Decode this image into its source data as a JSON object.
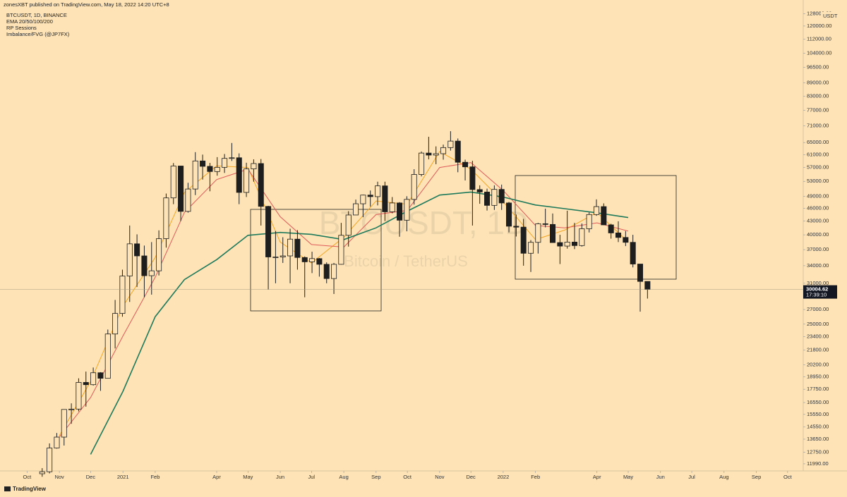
{
  "chart_data": {
    "type": "candlestick",
    "publisher": "zonesXBT published on TradingView.com, May 18, 2022 14:20 UTC+8",
    "title": "BTCUSDT, 1D, BINANCE",
    "indicators": [
      "EMA 20/50/100/200",
      "RP Sessions",
      "Imbalance/FVG (@JP7FX)"
    ],
    "watermark": "BTCUSDT, 1D",
    "watermark_subtitle": "Bitcoin / TetherUS",
    "currency": "USDT",
    "brand": "TradingView",
    "log_scale": true,
    "grid": false,
    "up_color": "#fde3b6",
    "down_color": "#1e1e1e",
    "edge_color": "#1e1e1e",
    "x": [
      "2020-10-12",
      "2020-10-19",
      "2020-10-26",
      "2020-11-02",
      "2020-11-09",
      "2020-11-16",
      "2020-11-23",
      "2020-11-30",
      "2020-12-07",
      "2020-12-14",
      "2020-12-21",
      "2020-12-28",
      "2021-01-04",
      "2021-01-11",
      "2021-01-18",
      "2021-01-25",
      "2021-02-01",
      "2021-02-08",
      "2021-02-15",
      "2021-02-22",
      "2021-03-01",
      "2021-03-08",
      "2021-03-15",
      "2021-03-22",
      "2021-03-29",
      "2021-04-05",
      "2021-04-12",
      "2021-04-19",
      "2021-04-26",
      "2021-05-03",
      "2021-05-10",
      "2021-05-17",
      "2021-05-24",
      "2021-05-31",
      "2021-06-07",
      "2021-06-14",
      "2021-06-21",
      "2021-06-28",
      "2021-07-05",
      "2021-07-12",
      "2021-07-19",
      "2021-07-26",
      "2021-08-02",
      "2021-08-09",
      "2021-08-16",
      "2021-08-23",
      "2021-08-30",
      "2021-09-06",
      "2021-09-13",
      "2021-09-20",
      "2021-09-27",
      "2021-10-04",
      "2021-10-11",
      "2021-10-18",
      "2021-10-25",
      "2021-11-01",
      "2021-11-08",
      "2021-11-15",
      "2021-11-22",
      "2021-11-29",
      "2021-12-06",
      "2021-12-13",
      "2021-12-20",
      "2021-12-27",
      "2022-01-03",
      "2022-01-10",
      "2022-01-17",
      "2022-01-24",
      "2022-01-31",
      "2022-02-07",
      "2022-02-14",
      "2022-02-21",
      "2022-02-28",
      "2022-03-07",
      "2022-03-14",
      "2022-03-21",
      "2022-03-28",
      "2022-04-04",
      "2022-04-11",
      "2022-04-18",
      "2022-04-25",
      "2022-05-02",
      "2022-05-09",
      "2022-05-16"
    ],
    "open": [
      11380,
      11500,
      13030,
      13800,
      15960,
      15990,
      18400,
      18180,
      19360,
      18800,
      23740,
      26450,
      32200,
      38150,
      35800,
      32260,
      33100,
      39200,
      48580,
      57450,
      45250,
      50900,
      59000,
      57350,
      55800,
      57050,
      59800,
      60000,
      50000,
      56580,
      58200,
      46450,
      35600,
      35600,
      35800,
      39100,
      35500,
      34700,
      35300,
      34250,
      31780,
      34250,
      39900,
      44400,
      47100,
      49300,
      48900,
      51750,
      45150,
      47300,
      43200,
      48200,
      54950,
      61500,
      60850,
      61300,
      63300,
      65500,
      58600,
      57200,
      50750,
      50100,
      46700,
      50800,
      47300,
      41850,
      41650,
      36300,
      38450,
      42400,
      42250,
      38400,
      37700,
      38500,
      37800,
      41300,
      44500,
      46400,
      42150,
      40400,
      39450,
      38450,
      34300,
      31300
    ],
    "high": [
      11720,
      13350,
      14100,
      15960,
      16480,
      18800,
      19480,
      19900,
      19420,
      24300,
      28400,
      33300,
      42000,
      40100,
      37800,
      38500,
      40950,
      49700,
      58350,
      57500,
      52600,
      61800,
      61000,
      58400,
      60200,
      61200,
      64850,
      61400,
      58450,
      59500,
      59600,
      46600,
      40800,
      39500,
      41300,
      41000,
      35700,
      36600,
      35400,
      34600,
      34500,
      42600,
      45300,
      48150,
      49400,
      50500,
      52900,
      52900,
      48800,
      47500,
      49000,
      56500,
      62000,
      67000,
      63700,
      64300,
      69000,
      66400,
      59400,
      59050,
      51900,
      51000,
      51900,
      52100,
      47550,
      44500,
      43500,
      38900,
      42600,
      45900,
      44750,
      40000,
      45400,
      42600,
      42450,
      45000,
      48200,
      47200,
      42400,
      42950,
      40800,
      40000,
      34300,
      31300
    ],
    "low": [
      11200,
      11400,
      12990,
      13200,
      14800,
      15800,
      16200,
      18100,
      17600,
      18800,
      22000,
      26000,
      28100,
      30400,
      28800,
      29200,
      32300,
      37400,
      47000,
      43000,
      44950,
      49300,
      53500,
      50300,
      54600,
      55400,
      59000,
      47000,
      48800,
      52900,
      42000,
      30000,
      31000,
      34500,
      31000,
      33300,
      28800,
      32700,
      32100,
      31000,
      29300,
      34200,
      37600,
      44400,
      43900,
      46400,
      46700,
      43000,
      44800,
      39600,
      40750,
      46900,
      54400,
      59500,
      58000,
      59400,
      62300,
      55600,
      53250,
      42000,
      47100,
      45450,
      45600,
      45600,
      40500,
      39650,
      34000,
      32900,
      36250,
      41600,
      39500,
      34300,
      37200,
      37100,
      37600,
      40500,
      44200,
      42100,
      39200,
      38500,
      37700,
      33700,
      26700,
      28600
    ],
    "close": [
      11500,
      13030,
      13800,
      15960,
      15990,
      18400,
      18180,
      19360,
      18800,
      23740,
      26450,
      32200,
      38150,
      35800,
      32260,
      33100,
      39200,
      48580,
      57450,
      45250,
      50900,
      59000,
      57350,
      55800,
      57050,
      59800,
      60000,
      50000,
      56580,
      58200,
      46450,
      35600,
      35600,
      35800,
      39100,
      35500,
      34700,
      35300,
      34250,
      31780,
      34250,
      39900,
      44400,
      47100,
      49300,
      48900,
      51750,
      45150,
      47300,
      43200,
      48200,
      54950,
      61500,
      60850,
      61300,
      63300,
      65500,
      58600,
      57200,
      50750,
      50100,
      46700,
      50800,
      47300,
      41850,
      41650,
      36300,
      38450,
      42400,
      42250,
      38400,
      37700,
      38500,
      37800,
      41300,
      44500,
      46400,
      42150,
      40400,
      39450,
      38450,
      34300,
      31300,
      30004.62
    ],
    "moving_averages": [
      {
        "color": "#f5a623",
        "x": [
          "2020-11",
          "2020-12",
          "2021-01",
          "2021-02",
          "2021-03",
          "2021-04",
          "2021-05",
          "2021-06",
          "2021-07",
          "2021-08",
          "2021-09",
          "2021-10",
          "2021-11",
          "2021-12",
          "2022-01",
          "2022-02",
          "2022-03",
          "2022-04",
          "2022-05"
        ],
        "values": [
          13900,
          18500,
          27500,
          35500,
          50000,
          57500,
          57000,
          38500,
          34500,
          39500,
          47800,
          47000,
          62000,
          56500,
          47600,
          39000,
          41000,
          45000,
          38500
        ]
      },
      {
        "color": "#e05a5a",
        "x": [
          "2020-11",
          "2020-12",
          "2021-01",
          "2021-02",
          "2021-03",
          "2021-04",
          "2021-05",
          "2021-06",
          "2021-07",
          "2021-08",
          "2021-09",
          "2021-10",
          "2021-11",
          "2021-12",
          "2022-01",
          "2022-02",
          "2022-03",
          "2022-04",
          "2022-05"
        ],
        "values": [
          13800,
          17000,
          23500,
          32000,
          45000,
          53500,
          56500,
          44000,
          38000,
          37500,
          44500,
          45500,
          57000,
          58500,
          50500,
          42000,
          41500,
          42600,
          40800
        ]
      },
      {
        "color": "#1f7a5c",
        "x": [
          "2020-12",
          "2021-01",
          "2021-02",
          "2021-03",
          "2021-04",
          "2021-05",
          "2021-06",
          "2021-07",
          "2021-08",
          "2021-09",
          "2021-10",
          "2021-11",
          "2021-12",
          "2022-01",
          "2022-02",
          "2022-03",
          "2022-04",
          "2022-05"
        ],
        "values": [
          12600,
          17560,
          26000,
          31600,
          35100,
          39900,
          40500,
          40100,
          39000,
          41500,
          45300,
          49300,
          50100,
          48800,
          46800,
          45900,
          44900,
          43800
        ]
      }
    ],
    "last_price": 30004.62,
    "countdown": "17:39:10",
    "xlim": [
      "2020-09-05",
      "2022-10-16"
    ],
    "ylim": [
      11550,
      137600
    ],
    "xticks": [
      {
        "value": "2020-10",
        "label": "Oct"
      },
      {
        "value": "2020-11",
        "label": "Nov"
      },
      {
        "value": "2020-12",
        "label": "Dec"
      },
      {
        "value": "2021-01",
        "label": "2021"
      },
      {
        "value": "2021-02",
        "label": "Feb"
      },
      {
        "value": "2021-04",
        "label": "Apr"
      },
      {
        "value": "2021-05",
        "label": "May"
      },
      {
        "value": "2021-06",
        "label": "Jun"
      },
      {
        "value": "2021-07",
        "label": "Jul"
      },
      {
        "value": "2021-08",
        "label": "Aug"
      },
      {
        "value": "2021-09",
        "label": "Sep"
      },
      {
        "value": "2021-10",
        "label": "Oct"
      },
      {
        "value": "2021-11",
        "label": "Nov"
      },
      {
        "value": "2021-12",
        "label": "Dec"
      },
      {
        "value": "2022-01",
        "label": "2022"
      },
      {
        "value": "2022-02",
        "label": "Feb"
      },
      {
        "value": "2022-04",
        "label": "Apr"
      },
      {
        "value": "2022-05",
        "label": "May"
      },
      {
        "value": "2022-06",
        "label": "Jun"
      },
      {
        "value": "2022-07",
        "label": "Jul"
      },
      {
        "value": "2022-08",
        "label": "Aug"
      },
      {
        "value": "2022-09",
        "label": "Sep"
      },
      {
        "value": "2022-10",
        "label": "Oct"
      }
    ],
    "yticks": [
      {
        "value": 11990,
        "label": "11990.00"
      },
      {
        "value": 12750,
        "label": "12750.00"
      },
      {
        "value": 13650,
        "label": "13650.00"
      },
      {
        "value": 14550,
        "label": "14550.00"
      },
      {
        "value": 15550,
        "label": "15550.00"
      },
      {
        "value": 16550,
        "label": "16550.00"
      },
      {
        "value": 17750,
        "label": "17750.00"
      },
      {
        "value": 18950,
        "label": "18950.00"
      },
      {
        "value": 20200,
        "label": "20200.00"
      },
      {
        "value": 21800,
        "label": "21800.00"
      },
      {
        "value": 23400,
        "label": "23400.00"
      },
      {
        "value": 25000,
        "label": "25000.00"
      },
      {
        "value": 27000,
        "label": "27000.00"
      },
      {
        "value": 31000,
        "label": "31000.00"
      },
      {
        "value": 34000,
        "label": "34000.00"
      },
      {
        "value": 37000,
        "label": "37000.00"
      },
      {
        "value": 40000,
        "label": "40000.00"
      },
      {
        "value": 43000,
        "label": "43000.00"
      },
      {
        "value": 46000,
        "label": "46000.00"
      },
      {
        "value": 49000,
        "label": "49000.00"
      },
      {
        "value": 53000,
        "label": "53000.00"
      },
      {
        "value": 57000,
        "label": "57000.00"
      },
      {
        "value": 61000,
        "label": "61000.00"
      },
      {
        "value": 65000,
        "label": "65000.00"
      },
      {
        "value": 71000,
        "label": "71000.00"
      },
      {
        "value": 77000,
        "label": "77000.00"
      },
      {
        "value": 83000,
        "label": "83000.00"
      },
      {
        "value": 89000,
        "label": "89000.00"
      },
      {
        "value": 96500,
        "label": "96500.00"
      },
      {
        "value": 104000,
        "label": "104000.00"
      },
      {
        "value": 112000,
        "label": "112000.00"
      },
      {
        "value": 120000,
        "label": "120000.00"
      },
      {
        "value": 128000,
        "label": "128000.00"
      }
    ]
  }
}
